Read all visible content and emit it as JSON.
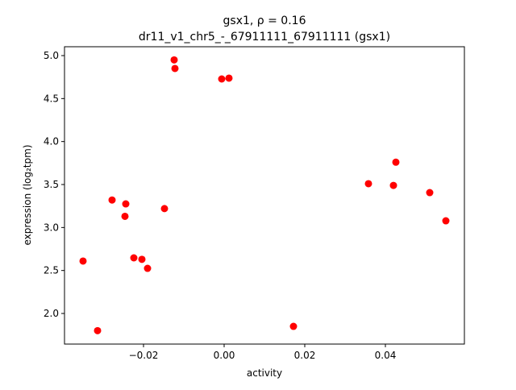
{
  "chart_data": {
    "type": "scatter",
    "title_line1": "gsx1, ρ = 0.16",
    "title_line2": "dr11_v1_chr5_-_67911111_67911111 (gsx1)",
    "xlabel": "activity",
    "ylabel": "expression (log₂tpm)",
    "xlim": [
      -0.0396,
      0.0596
    ],
    "ylim": [
      1.644,
      5.103
    ],
    "xticks": [
      -0.02,
      0.0,
      0.02,
      0.04
    ],
    "xtick_labels": [
      "−0.02",
      "0.00",
      "0.02",
      "0.04"
    ],
    "yticks": [
      2.0,
      2.5,
      3.0,
      3.5,
      4.0,
      4.5,
      5.0
    ],
    "ytick_labels": [
      "2.0",
      "2.5",
      "3.0",
      "3.5",
      "4.0",
      "4.5",
      "5.0"
    ],
    "grid": false,
    "marker_color": "#ff0000",
    "points": [
      [
        -0.035,
        2.61
      ],
      [
        -0.0314,
        1.8
      ],
      [
        -0.0278,
        3.32
      ],
      [
        -0.0244,
        3.275
      ],
      [
        -0.0246,
        3.13
      ],
      [
        -0.0224,
        2.647
      ],
      [
        -0.0204,
        2.63
      ],
      [
        -0.019,
        2.525
      ],
      [
        -0.0148,
        3.22
      ],
      [
        -0.0124,
        4.95
      ],
      [
        -0.0122,
        4.85
      ],
      [
        -0.0006,
        4.728
      ],
      [
        0.0012,
        4.738
      ],
      [
        0.0172,
        1.85
      ],
      [
        0.0358,
        3.51
      ],
      [
        0.042,
        3.49
      ],
      [
        0.0426,
        3.76
      ],
      [
        0.051,
        3.406
      ],
      [
        0.055,
        3.078
      ]
    ]
  }
}
